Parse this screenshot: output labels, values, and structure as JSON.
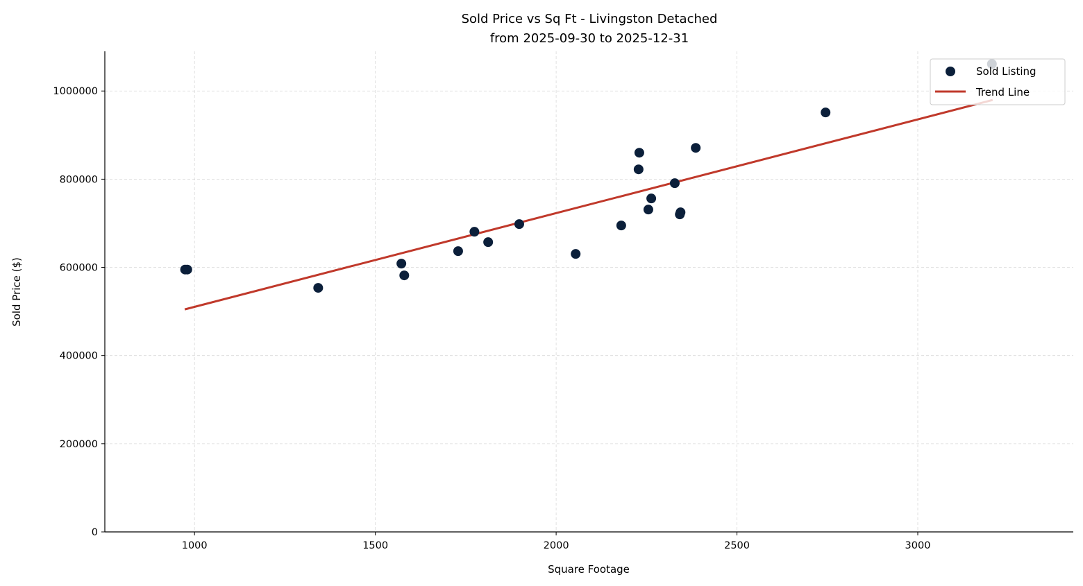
{
  "chart_data": {
    "type": "scatter",
    "title": "Sold Price vs Sq Ft - Livingston Detached",
    "subtitle": "from 2025-09-30 to 2025-12-31",
    "xlabel": "Square Footage",
    "ylabel": "Sold Price ($)",
    "xlim": [
      752,
      3430
    ],
    "ylim": [
      0,
      1090000
    ],
    "xticks": [
      1000,
      1500,
      2000,
      2500,
      3000
    ],
    "yticks": [
      0,
      200000,
      400000,
      600000,
      800000,
      1000000
    ],
    "grid": true,
    "legend": "top-right",
    "colors": {
      "points": "#0b1f3a",
      "trend": "#c0392b"
    },
    "series": [
      {
        "name": "Sold Listing",
        "type": "scatter",
        "points": [
          [
            974,
            595000
          ],
          [
            980,
            595000
          ],
          [
            1342,
            553500
          ],
          [
            1572,
            608500
          ],
          [
            1580,
            581800
          ],
          [
            1729,
            636800
          ],
          [
            1774,
            680800
          ],
          [
            1812,
            657200
          ],
          [
            1898,
            698100
          ],
          [
            2054,
            630500
          ],
          [
            2180,
            695000
          ],
          [
            2230,
            860000
          ],
          [
            2228,
            822300
          ],
          [
            2255,
            731100
          ],
          [
            2263,
            756300
          ],
          [
            2328,
            790900
          ],
          [
            2344,
            724800
          ],
          [
            2342,
            720100
          ],
          [
            2386,
            871000
          ],
          [
            2745,
            951300
          ],
          [
            3205,
            1061300
          ]
        ]
      },
      {
        "name": "Trend Line",
        "type": "line",
        "points": [
          [
            973,
            504700
          ],
          [
            3207,
            979600
          ]
        ]
      }
    ]
  }
}
